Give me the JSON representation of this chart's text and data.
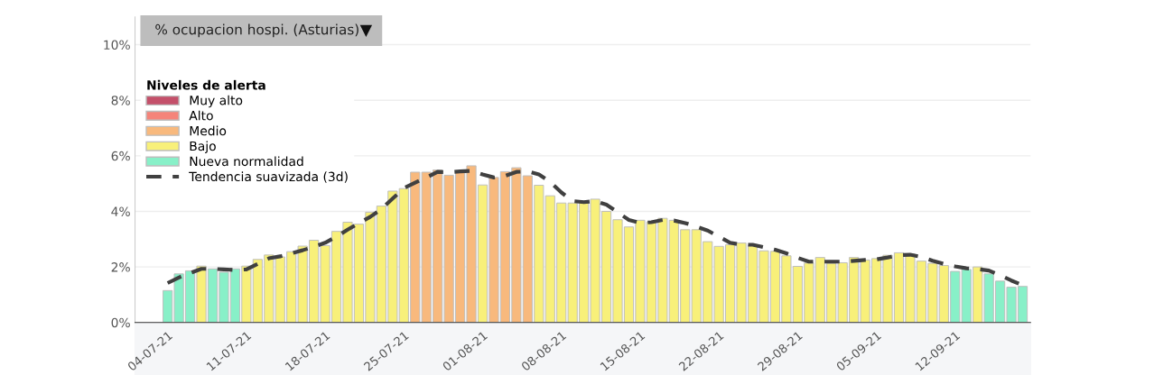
{
  "chart_data": {
    "type": "bar",
    "title": "% ocupacion hospi. (Asturias)",
    "legend_title": "Niveles de alerta",
    "legend": "top left",
    "grid": "y",
    "categories": [
      "04-07-21",
      null,
      null,
      null,
      null,
      null,
      null,
      "11-07-21",
      null,
      null,
      null,
      null,
      null,
      null,
      "18-07-21",
      null,
      null,
      null,
      null,
      null,
      null,
      "25-07-21",
      null,
      null,
      null,
      null,
      null,
      null,
      "01-08-21",
      null,
      null,
      null,
      null,
      null,
      null,
      "08-08-21",
      null,
      null,
      null,
      null,
      null,
      null,
      "15-08-21",
      null,
      null,
      null,
      null,
      null,
      null,
      "22-08-21",
      null,
      null,
      null,
      null,
      null,
      null,
      "29-08-21",
      null,
      null,
      null,
      null,
      null,
      null,
      "05-09-21",
      null,
      null,
      null,
      null,
      null,
      null,
      "12-09-21",
      null,
      null,
      null,
      null,
      null,
      null
    ],
    "ylim": [
      0,
      11
    ],
    "yticks": [
      {
        "value": 0,
        "label": "0%"
      },
      {
        "value": 2,
        "label": "2%"
      },
      {
        "value": 4,
        "label": "4%"
      },
      {
        "value": 6,
        "label": "6%"
      },
      {
        "value": 8,
        "label": "8%"
      },
      {
        "value": 10,
        "label": "10%"
      }
    ],
    "series": [
      {
        "name": "Muy alto",
        "color": "#c4506a",
        "values": [
          null,
          null,
          null,
          null,
          null,
          null,
          null,
          null,
          null,
          null,
          null,
          null,
          null,
          null,
          null,
          null,
          null,
          null,
          null,
          null,
          null,
          null,
          null,
          null,
          null,
          null,
          null,
          null,
          null,
          null,
          null,
          null,
          null,
          null,
          null,
          null,
          null,
          null,
          null,
          null,
          null,
          null,
          null,
          null,
          null,
          null,
          null,
          null,
          null,
          null,
          null,
          null,
          null,
          null,
          null,
          null,
          null,
          null,
          null,
          null,
          null,
          null,
          null,
          null,
          null,
          null,
          null,
          null,
          null,
          null,
          null,
          null,
          null,
          null,
          null,
          null,
          null
        ]
      },
      {
        "name": "Alto",
        "color": "#f5847a",
        "values": [
          null,
          null,
          null,
          null,
          null,
          null,
          null,
          null,
          null,
          null,
          null,
          null,
          null,
          null,
          null,
          null,
          null,
          null,
          null,
          null,
          null,
          null,
          null,
          null,
          null,
          null,
          null,
          null,
          null,
          null,
          null,
          null,
          null,
          null,
          null,
          null,
          null,
          null,
          null,
          null,
          null,
          null,
          null,
          null,
          null,
          null,
          null,
          null,
          null,
          null,
          null,
          null,
          null,
          null,
          null,
          null,
          null,
          null,
          null,
          null,
          null,
          null,
          null,
          null,
          null,
          null,
          null,
          null,
          null,
          null,
          null,
          null,
          null,
          null,
          null,
          null,
          null
        ]
      },
      {
        "name": "Medio",
        "color": "#f8b97d",
        "values": [
          null,
          null,
          null,
          null,
          null,
          null,
          null,
          null,
          null,
          null,
          null,
          null,
          null,
          null,
          null,
          null,
          null,
          null,
          null,
          null,
          null,
          null,
          5.41,
          5.41,
          5.49,
          5.3,
          5.46,
          5.64,
          null,
          5.22,
          5.43,
          5.57,
          5.28,
          null,
          null,
          null,
          null,
          null,
          null,
          null,
          null,
          null,
          null,
          null,
          null,
          null,
          null,
          null,
          null,
          null,
          null,
          null,
          null,
          null,
          null,
          null,
          null,
          null,
          null,
          null,
          null,
          null,
          null,
          null,
          null,
          null,
          null,
          null,
          null,
          null,
          null,
          null,
          null,
          null,
          null,
          null,
          null
        ]
      },
      {
        "name": "Bajo",
        "color": "#f8f07a",
        "values": [
          null,
          null,
          null,
          2.03,
          null,
          null,
          null,
          2.03,
          2.27,
          2.43,
          2.36,
          2.55,
          2.75,
          2.96,
          2.77,
          3.28,
          3.61,
          3.54,
          3.97,
          4.19,
          4.73,
          4.82,
          null,
          null,
          null,
          null,
          null,
          null,
          4.95,
          null,
          null,
          null,
          null,
          4.94,
          4.56,
          4.3,
          4.3,
          4.37,
          4.44,
          4.0,
          3.7,
          3.44,
          3.68,
          3.62,
          3.75,
          3.68,
          3.34,
          3.34,
          2.91,
          2.74,
          2.8,
          2.86,
          2.78,
          2.58,
          2.56,
          2.4,
          2.02,
          2.14,
          2.34,
          2.13,
          2.15,
          2.34,
          2.25,
          2.3,
          2.42,
          2.51,
          2.46,
          2.21,
          2.13,
          2.05,
          null,
          null,
          2.0,
          null,
          null,
          null,
          null
        ]
      },
      {
        "name": "Nueva normalidad",
        "color": "#88f0c8",
        "values": [
          1.15,
          1.75,
          1.86,
          null,
          1.93,
          1.81,
          1.93,
          null,
          null,
          null,
          null,
          null,
          null,
          null,
          null,
          null,
          null,
          null,
          null,
          null,
          null,
          null,
          null,
          null,
          null,
          null,
          null,
          null,
          null,
          null,
          null,
          null,
          null,
          null,
          null,
          null,
          null,
          null,
          null,
          null,
          null,
          null,
          null,
          null,
          null,
          null,
          null,
          null,
          null,
          null,
          null,
          null,
          null,
          null,
          null,
          null,
          null,
          null,
          null,
          null,
          null,
          null,
          null,
          null,
          null,
          null,
          null,
          null,
          null,
          null,
          1.84,
          1.91,
          null,
          1.75,
          1.49,
          1.27,
          1.3
        ]
      },
      {
        "name": "Tendencia suavizada (3d)",
        "type": "line",
        "color": "#404040",
        "line_style": "dashed",
        "values": [
          1.42,
          1.62,
          1.78,
          1.93,
          1.93,
          1.91,
          1.89,
          1.91,
          2.11,
          2.31,
          2.38,
          2.49,
          2.6,
          2.73,
          2.87,
          3.09,
          3.34,
          3.58,
          3.8,
          4.08,
          4.46,
          4.84,
          5.03,
          5.22,
          5.42,
          5.41,
          5.44,
          5.46,
          5.33,
          5.22,
          5.28,
          5.42,
          5.44,
          5.33,
          5.06,
          4.68,
          4.37,
          4.33,
          4.37,
          4.24,
          3.97,
          3.69,
          3.58,
          3.61,
          3.69,
          3.67,
          3.58,
          3.45,
          3.31,
          3.09,
          2.87,
          2.8,
          2.8,
          2.71,
          2.62,
          2.49,
          2.33,
          2.19,
          2.19,
          2.19,
          2.19,
          2.22,
          2.25,
          2.27,
          2.34,
          2.42,
          2.44,
          2.36,
          2.22,
          2.11,
          2.02,
          1.95,
          1.92,
          1.87,
          1.7,
          1.51,
          1.34
        ]
      }
    ]
  }
}
